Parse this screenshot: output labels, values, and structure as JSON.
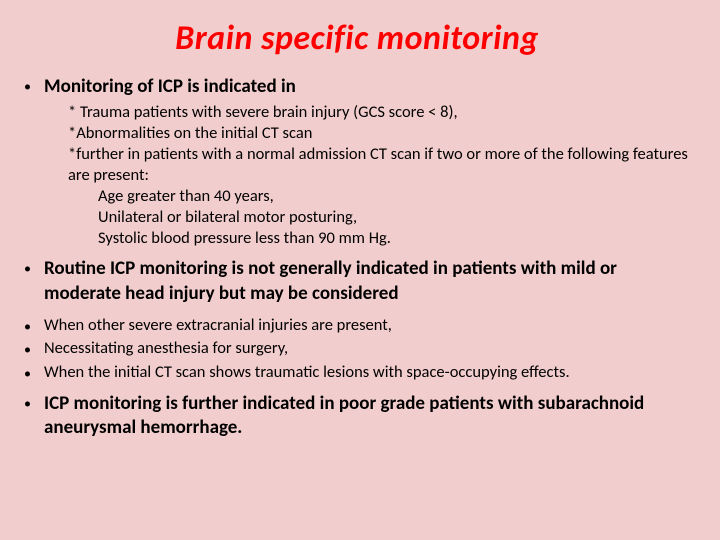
{
  "title": "Brain specific monitoring",
  "bullet1": {
    "heading": "Monitoring of ICP is indicated in",
    "sub1": " * Trauma patients with severe brain injury (GCS score < 8),",
    "sub2": "*Abnormalities on the initial CT scan",
    "sub3": "*further in patients with a normal admission CT scan if two or more of the following features are present:",
    "subsub1": "Age greater than 40 years,",
    "subsub2": "Unilateral or bilateral motor posturing,",
    "subsub3": "Systolic blood pressure less than 90 mm Hg."
  },
  "bullet2": "Routine ICP monitoring is not generally indicated in patients with mild or moderate head injury but may be considered",
  "bullet3": "When other severe extracranial injuries are present,",
  "bullet4": "Necessitating anesthesia for surgery,",
  "bullet5": " When the initial CT scan shows traumatic lesions with space-occupying effects.",
  "bullet6": "ICP monitoring is further indicated in poor grade patients with subarachnoid aneurysmal hemorrhage.",
  "colors": {
    "background": "#f2cdcd",
    "title": "#ff0000",
    "text": "#000000"
  },
  "typography": {
    "title_fontsize": 34,
    "main_bullet_fontsize": 19,
    "sub_fontsize": 16.5,
    "font_family": "Calibri"
  }
}
